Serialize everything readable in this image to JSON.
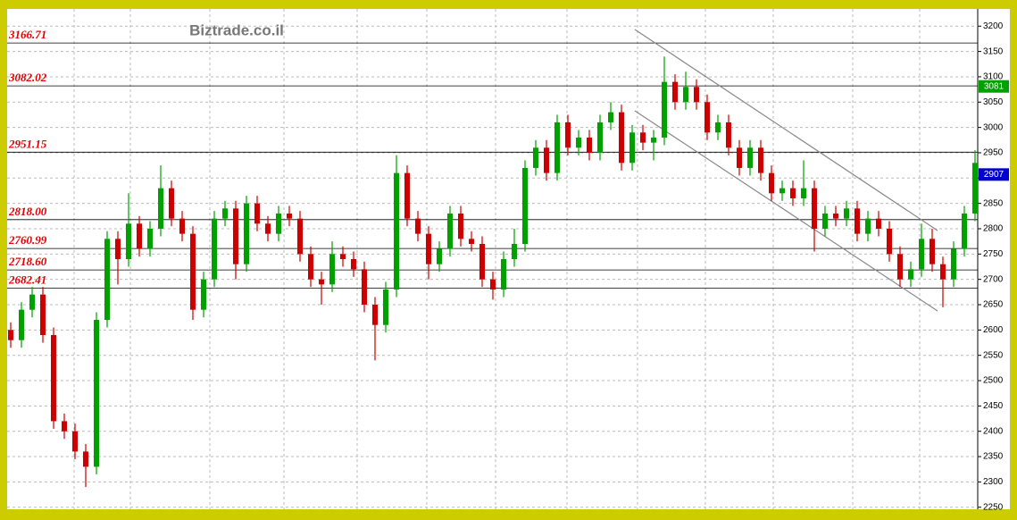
{
  "chart_data": {
    "type": "candlestick",
    "title": "Biztrade.co.il",
    "open": [
      2600,
      2580,
      2640,
      2670,
      2590,
      2420,
      2400,
      2360,
      2330,
      2620,
      2780,
      2740,
      2810,
      2760,
      2800,
      2880,
      2820,
      2790,
      2640,
      2700,
      2820,
      2840,
      2730,
      2850,
      2810,
      2790,
      2830,
      2820,
      2750,
      2700,
      2690,
      2750,
      2740,
      2720,
      2650,
      2610,
      2680,
      2910,
      2820,
      2790,
      2730,
      2760,
      2830,
      2780,
      2770,
      2700,
      2680,
      2740,
      2770,
      2920,
      2960,
      2910,
      3010,
      2960,
      2980,
      2950,
      3010,
      3030,
      2930,
      2990,
      2970,
      2980,
      3090,
      3050,
      3080,
      3050,
      2990,
      3010,
      2960,
      2920,
      2960,
      2910,
      2870,
      2880,
      2860,
      2880,
      2800,
      2830,
      2820,
      2840,
      2790,
      2820,
      2800,
      2750,
      2700,
      2720,
      2780,
      2730,
      2700,
      2760,
      2830
    ],
    "high": [
      2615,
      2655,
      2685,
      2685,
      2605,
      2435,
      2415,
      2375,
      2635,
      2795,
      2795,
      2870,
      2825,
      2815,
      2925,
      2895,
      2835,
      2805,
      2715,
      2835,
      2855,
      2855,
      2865,
      2865,
      2825,
      2845,
      2845,
      2835,
      2765,
      2715,
      2775,
      2765,
      2755,
      2735,
      2665,
      2695,
      2945,
      2925,
      2835,
      2805,
      2775,
      2845,
      2845,
      2795,
      2785,
      2715,
      2755,
      2800,
      2935,
      2975,
      2975,
      3025,
      3025,
      2995,
      2995,
      3025,
      3050,
      3045,
      3005,
      3005,
      2995,
      3140,
      3105,
      3110,
      3095,
      3065,
      3025,
      3025,
      2975,
      2975,
      2975,
      2925,
      2895,
      2895,
      2935,
      2895,
      2845,
      2845,
      2855,
      2855,
      2835,
      2835,
      2815,
      2765,
      2735,
      2810,
      2800,
      2745,
      2775,
      2845,
      2955
    ],
    "low": [
      2565,
      2565,
      2625,
      2575,
      2405,
      2385,
      2345,
      2290,
      2315,
      2605,
      2690,
      2725,
      2745,
      2745,
      2785,
      2805,
      2775,
      2620,
      2625,
      2685,
      2805,
      2700,
      2715,
      2795,
      2775,
      2775,
      2805,
      2735,
      2685,
      2650,
      2675,
      2725,
      2705,
      2635,
      2540,
      2595,
      2665,
      2805,
      2775,
      2700,
      2715,
      2745,
      2765,
      2755,
      2685,
      2660,
      2665,
      2725,
      2755,
      2905,
      2895,
      2895,
      2945,
      2945,
      2935,
      2935,
      2995,
      2915,
      2915,
      2955,
      2935,
      2965,
      3035,
      3035,
      3035,
      2975,
      2975,
      2945,
      2905,
      2905,
      2895,
      2855,
      2855,
      2845,
      2845,
      2755,
      2785,
      2805,
      2805,
      2775,
      2775,
      2785,
      2735,
      2685,
      2685,
      2705,
      2715,
      2645,
      2685,
      2745,
      2815
    ],
    "close": [
      2580,
      2640,
      2670,
      2590,
      2420,
      2400,
      2360,
      2330,
      2620,
      2780,
      2740,
      2810,
      2760,
      2800,
      2880,
      2820,
      2790,
      2640,
      2700,
      2820,
      2840,
      2730,
      2850,
      2810,
      2790,
      2830,
      2820,
      2750,
      2700,
      2690,
      2750,
      2740,
      2720,
      2650,
      2610,
      2680,
      2910,
      2820,
      2790,
      2730,
      2760,
      2830,
      2780,
      2770,
      2700,
      2680,
      2740,
      2770,
      2920,
      2960,
      2910,
      3010,
      2960,
      2980,
      2950,
      3010,
      3030,
      2930,
      2990,
      2970,
      2980,
      3090,
      3050,
      3080,
      3050,
      2990,
      3010,
      2960,
      2920,
      2960,
      2910,
      2870,
      2880,
      2860,
      2880,
      2800,
      2830,
      2820,
      2840,
      2790,
      2820,
      2800,
      2750,
      2700,
      2720,
      2780,
      2730,
      2700,
      2760,
      2830,
      2930
    ],
    "up_color": "#00a000",
    "down_color": "#cc0000",
    "ylim": [
      2246,
      3234
    ],
    "yticks": [
      2250,
      2300,
      2350,
      2400,
      2450,
      2500,
      2550,
      2600,
      2650,
      2700,
      2750,
      2800,
      2850,
      2900,
      2950,
      3000,
      3050,
      3100,
      3150,
      3200
    ],
    "grid": true,
    "levels": [
      3166.71,
      3082.02,
      2951.15,
      {
        "value": 2818.0,
        "label": "2818.00"
      },
      2760.99,
      {
        "value": 2718.6,
        "label": "2718.60"
      },
      2682.41
    ],
    "price_markers": [
      {
        "value": 3081,
        "color": "#00a000"
      },
      {
        "value": 2907,
        "color": "#0000cc"
      }
    ]
  }
}
